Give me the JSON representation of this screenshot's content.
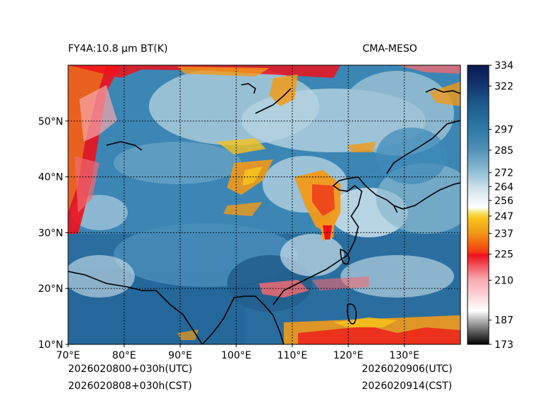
{
  "figure": {
    "title_left": "FY4A:10.8 μm BT(K)",
    "title_right": "CMA-MESO",
    "footer_left_utc": "2026020800+030h(UTC)",
    "footer_left_cst": "2026020808+030h(CST)",
    "footer_right_utc": "2026020906(UTC)",
    "footer_right_cst": "2026020914(CST)"
  },
  "map": {
    "extent": {
      "lon": [
        70,
        140
      ],
      "lat": [
        10,
        60
      ]
    },
    "lon_ticks": [
      {
        "value": 70,
        "label": "70°E"
      },
      {
        "value": 80,
        "label": "80°E"
      },
      {
        "value": 90,
        "label": "90°E"
      },
      {
        "value": 100,
        "label": "100°E"
      },
      {
        "value": 110,
        "label": "110°E"
      },
      {
        "value": 120,
        "label": "120°E"
      },
      {
        "value": 130,
        "label": "130°E"
      }
    ],
    "lat_ticks": [
      {
        "value": 10,
        "label": "10°N"
      },
      {
        "value": 20,
        "label": "20°N"
      },
      {
        "value": 30,
        "label": "30°N"
      },
      {
        "value": 40,
        "label": "40°N"
      },
      {
        "value": 50,
        "label": "50°N"
      }
    ]
  },
  "colorbar": {
    "ticks": [
      {
        "value": 334,
        "label": "334"
      },
      {
        "value": 322,
        "label": "322"
      },
      {
        "value": 297,
        "label": "297"
      },
      {
        "value": 285,
        "label": "285"
      },
      {
        "value": 272,
        "label": "272"
      },
      {
        "value": 264,
        "label": "264"
      },
      {
        "value": 256,
        "label": "256"
      },
      {
        "value": 247,
        "label": "247"
      },
      {
        "value": 237,
        "label": "237"
      },
      {
        "value": 225,
        "label": "225"
      },
      {
        "value": 210,
        "label": "210"
      },
      {
        "value": 187,
        "label": "187"
      },
      {
        "value": 173,
        "label": "173"
      }
    ],
    "colors": {
      "c334": "#0b1a4e",
      "c322": "#11306a",
      "c297": "#1d5a8c",
      "c285": "#2a77a6",
      "c272": "#5f9ec0",
      "c264": "#9cc4d8",
      "c256": "#d6e7ef",
      "c247": "#f7c21b",
      "c237": "#f29a18",
      "c225": "#f0101a",
      "c210": "#f06a72",
      "c187": "#cfcfcf",
      "c173": "#000000"
    }
  }
}
